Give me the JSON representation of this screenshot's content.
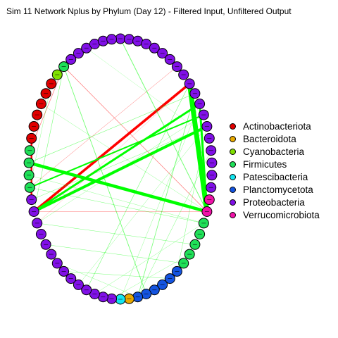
{
  "title": "Sim 11 Network Nplus by Phylum (Day 12) - Filtered Input, Unfiltered Output",
  "colors": {
    "Actinobacteriota": "#e00000",
    "Bacteroidota": "#e8a900",
    "Cyanobacteria": "#80e000",
    "Firmicutes": "#1fe058",
    "Patescibacteria": "#12e6f0",
    "Planctomycetota": "#1454e0",
    "Proteobacteria": "#8010e6",
    "Verrucomicrobiota": "#f012a8",
    "edge_positive": "#00ff00",
    "edge_negative": "#ff0000"
  },
  "legend": [
    {
      "label": "Actinobacteriota",
      "color": "#e00000"
    },
    {
      "label": "Bacteroidota",
      "color": "#e8a900"
    },
    {
      "label": "Cyanobacteria",
      "color": "#80e000"
    },
    {
      "label": "Firmicutes",
      "color": "#1fe058"
    },
    {
      "label": "Patescibacteria",
      "color": "#12e6f0"
    },
    {
      "label": "Planctomycetota",
      "color": "#1454e0"
    },
    {
      "label": "Proteobacteria",
      "color": "#8010e6"
    },
    {
      "label": "Verrucomicrobiota",
      "color": "#f012a8"
    }
  ],
  "nodes": [
    {
      "id": 0,
      "phylum": "Proteobacteria"
    },
    {
      "id": 1,
      "phylum": "Proteobacteria"
    },
    {
      "id": 2,
      "phylum": "Proteobacteria"
    },
    {
      "id": 3,
      "phylum": "Proteobacteria"
    },
    {
      "id": 4,
      "phylum": "Proteobacteria"
    },
    {
      "id": 5,
      "phylum": "Proteobacteria"
    },
    {
      "id": 6,
      "phylum": "Proteobacteria"
    },
    {
      "id": 7,
      "phylum": "Proteobacteria"
    },
    {
      "id": 8,
      "phylum": "Proteobacteria"
    },
    {
      "id": 9,
      "phylum": "Proteobacteria"
    },
    {
      "id": 10,
      "phylum": "Proteobacteria"
    },
    {
      "id": 11,
      "phylum": "Proteobacteria"
    },
    {
      "id": 12,
      "phylum": "Proteobacteria"
    },
    {
      "id": 13,
      "phylum": "Proteobacteria"
    },
    {
      "id": 14,
      "phylum": "Proteobacteria"
    },
    {
      "id": 15,
      "phylum": "Proteobacteria"
    },
    {
      "id": 16,
      "phylum": "Proteobacteria"
    },
    {
      "id": 17,
      "phylum": "Proteobacteria"
    },
    {
      "id": 18,
      "phylum": "Proteobacteria"
    },
    {
      "id": 19,
      "phylum": "Verrucomicrobiota"
    },
    {
      "id": 20,
      "phylum": "Verrucomicrobiota"
    },
    {
      "id": 21,
      "phylum": "Firmicutes"
    },
    {
      "id": 22,
      "phylum": "Firmicutes"
    },
    {
      "id": 23,
      "phylum": "Firmicutes"
    },
    {
      "id": 24,
      "phylum": "Firmicutes"
    },
    {
      "id": 25,
      "phylum": "Firmicutes"
    },
    {
      "id": 26,
      "phylum": "Planctomycetota"
    },
    {
      "id": 27,
      "phylum": "Planctomycetota"
    },
    {
      "id": 28,
      "phylum": "Planctomycetota"
    },
    {
      "id": 29,
      "phylum": "Planctomycetota"
    },
    {
      "id": 30,
      "phylum": "Planctomycetota"
    },
    {
      "id": 31,
      "phylum": "Planctomycetota"
    },
    {
      "id": 32,
      "phylum": "Bacteroidota"
    },
    {
      "id": 33,
      "phylum": "Patescibacteria"
    },
    {
      "id": 34,
      "phylum": "Proteobacteria"
    },
    {
      "id": 35,
      "phylum": "Proteobacteria"
    },
    {
      "id": 36,
      "phylum": "Proteobacteria"
    },
    {
      "id": 37,
      "phylum": "Proteobacteria"
    },
    {
      "id": 38,
      "phylum": "Proteobacteria"
    },
    {
      "id": 39,
      "phylum": "Proteobacteria"
    },
    {
      "id": 40,
      "phylum": "Proteobacteria"
    },
    {
      "id": 41,
      "phylum": "Proteobacteria"
    },
    {
      "id": 42,
      "phylum": "Proteobacteria"
    },
    {
      "id": 43,
      "phylum": "Proteobacteria"
    },
    {
      "id": 44,
      "phylum": "Proteobacteria"
    },
    {
      "id": 45,
      "phylum": "Proteobacteria"
    },
    {
      "id": 46,
      "phylum": "Proteobacteria"
    },
    {
      "id": 47,
      "phylum": "Proteobacteria"
    },
    {
      "id": 48,
      "phylum": "Firmicutes"
    },
    {
      "id": 49,
      "phylum": "Firmicutes"
    },
    {
      "id": 50,
      "phylum": "Firmicutes"
    },
    {
      "id": 51,
      "phylum": "Firmicutes"
    },
    {
      "id": 52,
      "phylum": "Actinobacteriota"
    },
    {
      "id": 53,
      "phylum": "Actinobacteriota"
    },
    {
      "id": 54,
      "phylum": "Actinobacteriota"
    },
    {
      "id": 55,
      "phylum": "Actinobacteriota"
    },
    {
      "id": 56,
      "phylum": "Actinobacteriota"
    },
    {
      "id": 57,
      "phylum": "Actinobacteriota"
    },
    {
      "id": 58,
      "phylum": "Cyanobacteria"
    },
    {
      "id": 59,
      "phylum": "Firmicutes"
    },
    {
      "id": 60,
      "phylum": "Proteobacteria"
    },
    {
      "id": 61,
      "phylum": "Proteobacteria"
    },
    {
      "id": 62,
      "phylum": "Proteobacteria"
    },
    {
      "id": 63,
      "phylum": "Proteobacteria"
    },
    {
      "id": 64,
      "phylum": "Proteobacteria"
    },
    {
      "id": 65,
      "phylum": "Proteobacteria"
    }
  ],
  "edges": [
    {
      "from": 9,
      "to": 20,
      "sign": "positive",
      "weight": 7
    },
    {
      "from": 9,
      "to": 46,
      "sign": "negative",
      "weight": 3.5
    },
    {
      "from": 13,
      "to": 46,
      "sign": "positive",
      "weight": 4
    },
    {
      "from": 11,
      "to": 46,
      "sign": "positive",
      "weight": 3
    },
    {
      "from": 20,
      "to": 50,
      "sign": "positive",
      "weight": 4.5
    },
    {
      "from": 52,
      "to": 47,
      "sign": "negative",
      "weight": 2.5
    },
    {
      "from": 11,
      "to": 20,
      "sign": "positive",
      "weight": 3
    },
    {
      "from": 12,
      "to": 48,
      "sign": "positive",
      "weight": 2
    },
    {
      "from": 59,
      "to": 51,
      "sign": "negative",
      "weight": 0.7
    },
    {
      "from": 59,
      "to": 20,
      "sign": "negative",
      "weight": 0.7
    },
    {
      "from": 0,
      "to": 20,
      "sign": "positive",
      "weight": 1
    },
    {
      "from": 59,
      "to": 30,
      "sign": "positive",
      "weight": 0.9
    },
    {
      "from": 10,
      "to": 31,
      "sign": "positive",
      "weight": 0.8
    },
    {
      "from": 46,
      "to": 20,
      "sign": "negative",
      "weight": 0.6
    },
    {
      "from": 9,
      "to": 37,
      "sign": "positive",
      "weight": 0.6
    },
    {
      "from": 10,
      "to": 50,
      "sign": "positive",
      "weight": 0.6
    },
    {
      "from": 59,
      "to": 46,
      "sign": "positive",
      "weight": 0.6
    },
    {
      "from": 48,
      "to": 7,
      "sign": "negative",
      "weight": 0.5
    },
    {
      "from": 47,
      "to": 13,
      "sign": "positive",
      "weight": 0.5
    },
    {
      "from": 48,
      "to": 21,
      "sign": "positive",
      "weight": 0.5
    },
    {
      "from": 45,
      "to": 23,
      "sign": "positive",
      "weight": 0.5
    },
    {
      "from": 43,
      "to": 25,
      "sign": "positive",
      "weight": 0.5
    },
    {
      "from": 40,
      "to": 27,
      "sign": "positive",
      "weight": 0.5
    },
    {
      "from": 36,
      "to": 21,
      "sign": "positive",
      "weight": 0.4
    },
    {
      "from": 41,
      "to": 31,
      "sign": "positive",
      "weight": 0.4
    },
    {
      "from": 31,
      "to": 15,
      "sign": "positive",
      "weight": 0.5
    },
    {
      "from": 26,
      "to": 13,
      "sign": "positive",
      "weight": 0.5
    },
    {
      "from": 55,
      "to": 20,
      "sign": "positive",
      "weight": 0.4
    },
    {
      "from": 57,
      "to": 48,
      "sign": "positive",
      "weight": 0.4
    },
    {
      "from": 57,
      "to": 52,
      "sign": "negative",
      "weight": 0.3
    },
    {
      "from": 45,
      "to": 9,
      "sign": "negative",
      "weight": 0.3
    },
    {
      "from": 45,
      "to": 12,
      "sign": "positive",
      "weight": 0.4
    },
    {
      "from": 49,
      "to": 21,
      "sign": "positive",
      "weight": 0.4
    },
    {
      "from": 34,
      "to": 24,
      "sign": "positive",
      "weight": 0.4
    },
    {
      "from": 33,
      "to": 11,
      "sign": "positive",
      "weight": 0.4
    },
    {
      "from": 38,
      "to": 13,
      "sign": "positive",
      "weight": 0.4
    },
    {
      "from": 62,
      "to": 14,
      "sign": "positive",
      "weight": 0.3
    }
  ]
}
